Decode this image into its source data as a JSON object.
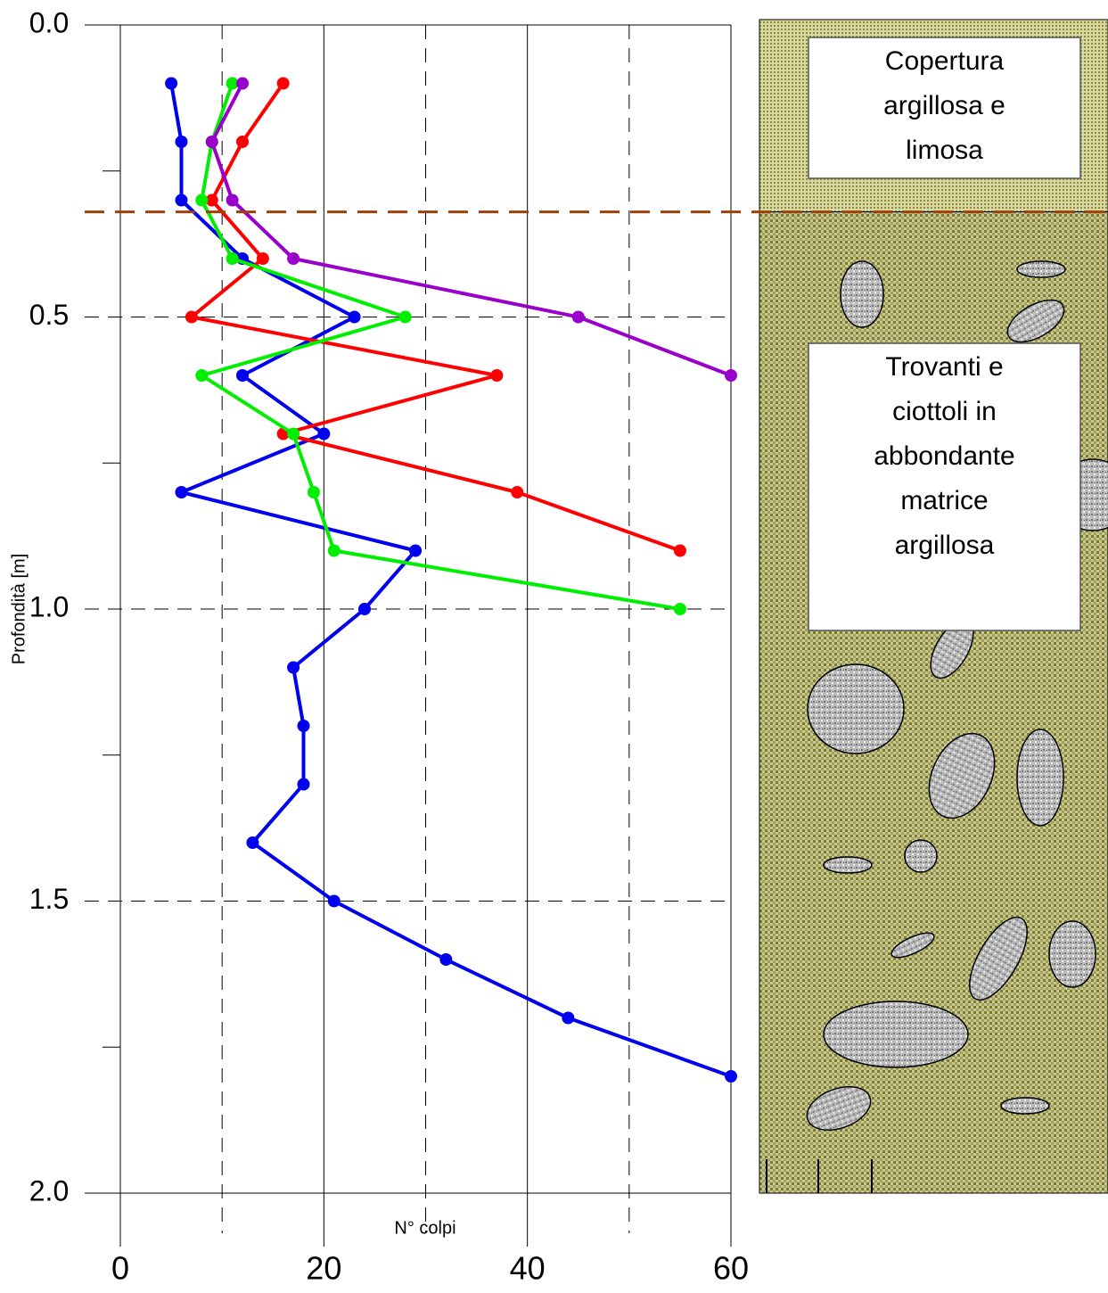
{
  "chart_data": {
    "type": "line",
    "y_label": "Profondità [m]",
    "x_label": "N° colpi",
    "xlim": [
      0,
      60
    ],
    "xticks": [
      0,
      20,
      40,
      60
    ],
    "xminorticks": [
      10,
      30,
      50
    ],
    "ylim": [
      0,
      2
    ],
    "y_reversed": true,
    "yticks": [
      {
        "value": 0,
        "label": "0.0"
      },
      {
        "value": 0.5,
        "label": "0.5"
      },
      {
        "value": 1,
        "label": "1.0"
      },
      {
        "value": 1.5,
        "label": "1.5"
      },
      {
        "value": 2,
        "label": "2.0"
      }
    ],
    "yminorticks": [
      0.25,
      0.75,
      1.25,
      1.75
    ],
    "boundary_depth": 0.32,
    "boundary_color": "#a0400a",
    "series": [
      {
        "color": "#0000ee",
        "depth": [
          0.1,
          0.2,
          0.3,
          0.4,
          0.5,
          0.6,
          0.7,
          0.8,
          0.9,
          1.0,
          1.1,
          1.2,
          1.3,
          1.4,
          1.5,
          1.6,
          1.7,
          1.8
        ],
        "values": [
          5,
          6,
          6,
          12,
          23,
          12,
          20,
          6,
          29,
          24,
          17,
          18,
          18,
          13,
          21,
          32,
          44,
          60
        ]
      },
      {
        "color": "#ff0000",
        "depth": [
          0.1,
          0.2,
          0.3,
          0.4,
          0.5,
          0.6,
          0.7,
          0.8,
          0.9
        ],
        "values": [
          16,
          12,
          9,
          14,
          7,
          37,
          16,
          39,
          55
        ]
      },
      {
        "color": "#00ee00",
        "depth": [
          0.1,
          0.2,
          0.3,
          0.4,
          0.5,
          0.6,
          0.7,
          0.8,
          0.9,
          1.0
        ],
        "values": [
          11,
          9,
          8,
          11,
          28,
          8,
          17,
          19,
          21,
          55
        ]
      },
      {
        "color": "#9900cc",
        "depth": [
          0.1,
          0.2,
          0.3,
          0.4,
          0.5,
          0.6
        ],
        "values": [
          12,
          9,
          11,
          17,
          45,
          60
        ]
      }
    ],
    "layers": [
      {
        "lines": [
          "Copertura",
          "argillosa e",
          "limosa"
        ],
        "top": 0,
        "bottom": 0.32
      },
      {
        "lines": [
          "Trovanti e",
          "ciottoli in",
          "abbondante",
          "matrice",
          "argillosa"
        ],
        "top": 0.32,
        "bottom": 2
      }
    ]
  }
}
